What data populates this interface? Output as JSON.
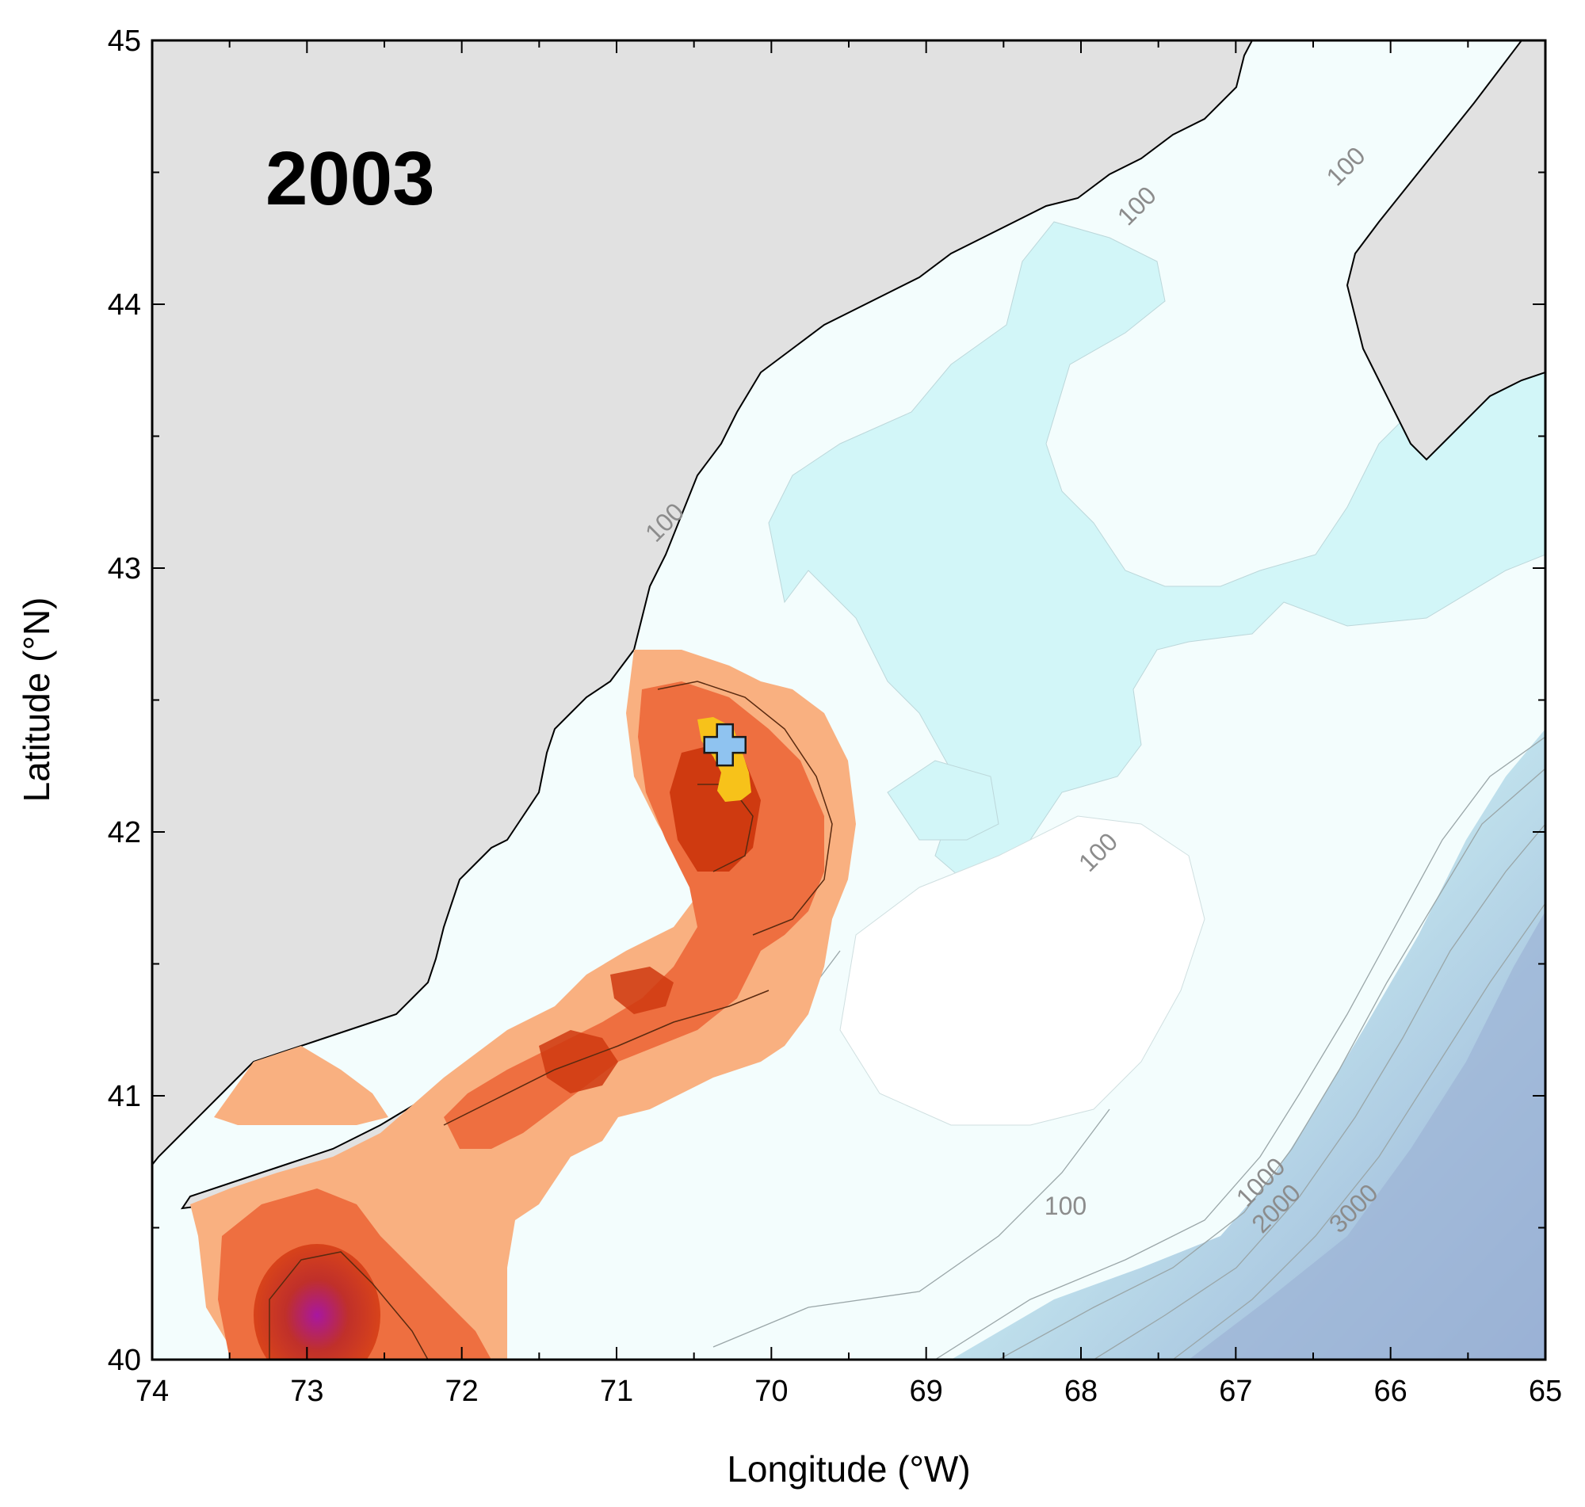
{
  "chart_data": {
    "type": "map",
    "title": "2003",
    "xlabel": "Longitude (°W)",
    "ylabel": "Latitude (°N)",
    "xlim": [
      74,
      65
    ],
    "ylim": [
      40,
      45
    ],
    "x_ticks": [
      "74",
      "73",
      "72",
      "71",
      "70",
      "69",
      "68",
      "67",
      "66",
      "65"
    ],
    "y_ticks": [
      "40",
      "41",
      "42",
      "43",
      "44",
      "45"
    ],
    "depth_contour_labels": [
      {
        "text": "100",
        "lon": 67.6,
        "lat": 44.35
      },
      {
        "text": "100",
        "lon": 66.25,
        "lat": 44.5
      },
      {
        "text": "100",
        "lon": 70.65,
        "lat": 43.15
      },
      {
        "text": "100",
        "lon": 67.85,
        "lat": 41.9
      },
      {
        "text": "100",
        "lon": 68.1,
        "lat": 40.55
      },
      {
        "text": "1000",
        "lon": 66.8,
        "lat": 40.65
      },
      {
        "text": "2000",
        "lon": 66.7,
        "lat": 40.55
      },
      {
        "text": "3000",
        "lon": 66.2,
        "lat": 40.55
      }
    ],
    "marker": {
      "type": "plus",
      "lon": 70.3,
      "lat": 42.33,
      "color": "#8fc3f0"
    },
    "colors": {
      "land": "#e1e1e1",
      "shelf_water": "#f3fdfd",
      "basin_water": "#d2f6f8",
      "deep_water": "#9fb7d8",
      "density_low": "#f9b080",
      "density_mid": "#ee6f40",
      "density_high": "#cf3a10",
      "density_peak": "#a817a0",
      "hotspot": "#f7c21a"
    }
  }
}
